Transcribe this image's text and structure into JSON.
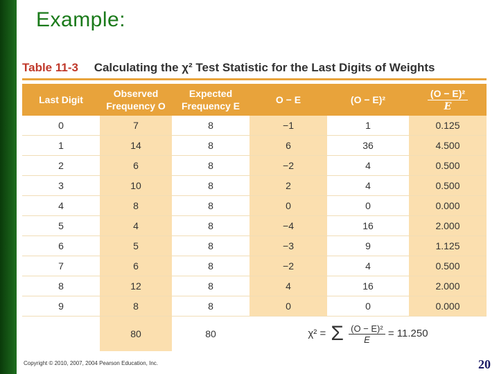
{
  "slide": {
    "title": "Example:",
    "page_number": "20",
    "copyright": "Copyright © 2010, 2007, 2004 Pearson Education, Inc."
  },
  "table": {
    "number": "Table 11-3",
    "caption": "Calculating the χ² Test Statistic for the Last Digits of Weights",
    "headers": [
      "Last Digit",
      "Observed Frequency O",
      "Expected Frequency E",
      "O − E",
      "(O − E)²",
      "(O − E)² / E"
    ],
    "header_last": {
      "numerator": "(O − E)²",
      "denominator": "E"
    },
    "rows": [
      [
        "0",
        "7",
        "8",
        "−1",
        "1",
        "0.125"
      ],
      [
        "1",
        "14",
        "8",
        "6",
        "36",
        "4.500"
      ],
      [
        "2",
        "6",
        "8",
        "−2",
        "4",
        "0.500"
      ],
      [
        "3",
        "10",
        "8",
        "2",
        "4",
        "0.500"
      ],
      [
        "4",
        "8",
        "8",
        "0",
        "0",
        "0.000"
      ],
      [
        "5",
        "4",
        "8",
        "−4",
        "16",
        "2.000"
      ],
      [
        "6",
        "5",
        "8",
        "−3",
        "9",
        "1.125"
      ],
      [
        "7",
        "6",
        "8",
        "−2",
        "4",
        "0.500"
      ],
      [
        "8",
        "12",
        "8",
        "4",
        "16",
        "2.000"
      ],
      [
        "9",
        "8",
        "8",
        "0",
        "0",
        "0.000"
      ]
    ],
    "totals": {
      "observed": "80",
      "expected": "80"
    },
    "formula": {
      "lhs": "χ² =",
      "sigma": "Σ",
      "numerator": "(O − E)²",
      "denominator": "E",
      "result": "= 11.250"
    }
  },
  "colors": {
    "header": "#e8a33b",
    "shaded_column": "#fbdfaf",
    "title": "#1a7a1a",
    "left_bar": "#1f6e1f"
  }
}
